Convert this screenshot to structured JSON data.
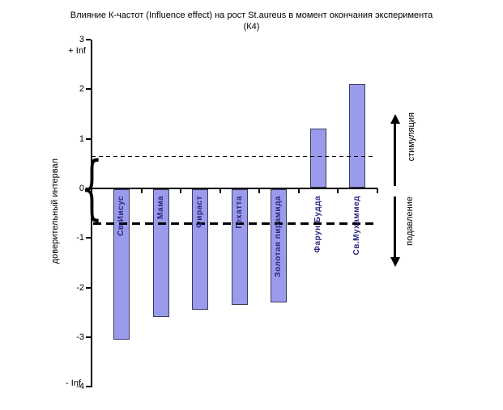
{
  "title": {
    "line1": "Влияние К-частот (Influence effect) на рост St.aureus в момент окончания эксперимента",
    "line2": "(К4)"
  },
  "chart_data": {
    "type": "bar",
    "categories": [
      "Св.Иисус",
      "Мама",
      "Фираст",
      "Гехатта",
      "Золотая пирамида",
      "Фарун Будда",
      "Св.Мухаммед"
    ],
    "values": [
      -3.05,
      -2.6,
      -2.45,
      -2.35,
      -2.3,
      1.2,
      2.1
    ],
    "ylim": [
      -4,
      3
    ],
    "ytick_labels": [
      "3",
      "2",
      "1",
      "0",
      "-1",
      "-2",
      "-3",
      "-4"
    ],
    "ytick_values": [
      3,
      2,
      1,
      0,
      -1,
      -2,
      -3,
      -4
    ],
    "reference_lines": [
      {
        "value": 0.65,
        "style": "thin-dashed"
      },
      {
        "value": -0.7,
        "style": "thick-dashed"
      }
    ],
    "bar_color": "#9B9BEB",
    "bar_border_color": "#3A3A5C",
    "bar_label_color": "#29297D",
    "grid": "off",
    "legend": "none"
  },
  "annotations": {
    "plus_inf": "+ Inf",
    "minus_inf": "- Inf",
    "confidence_interval": "доверительный интервал",
    "brace": "{",
    "stimulation": "стимуляция",
    "suppression": "подавление"
  }
}
